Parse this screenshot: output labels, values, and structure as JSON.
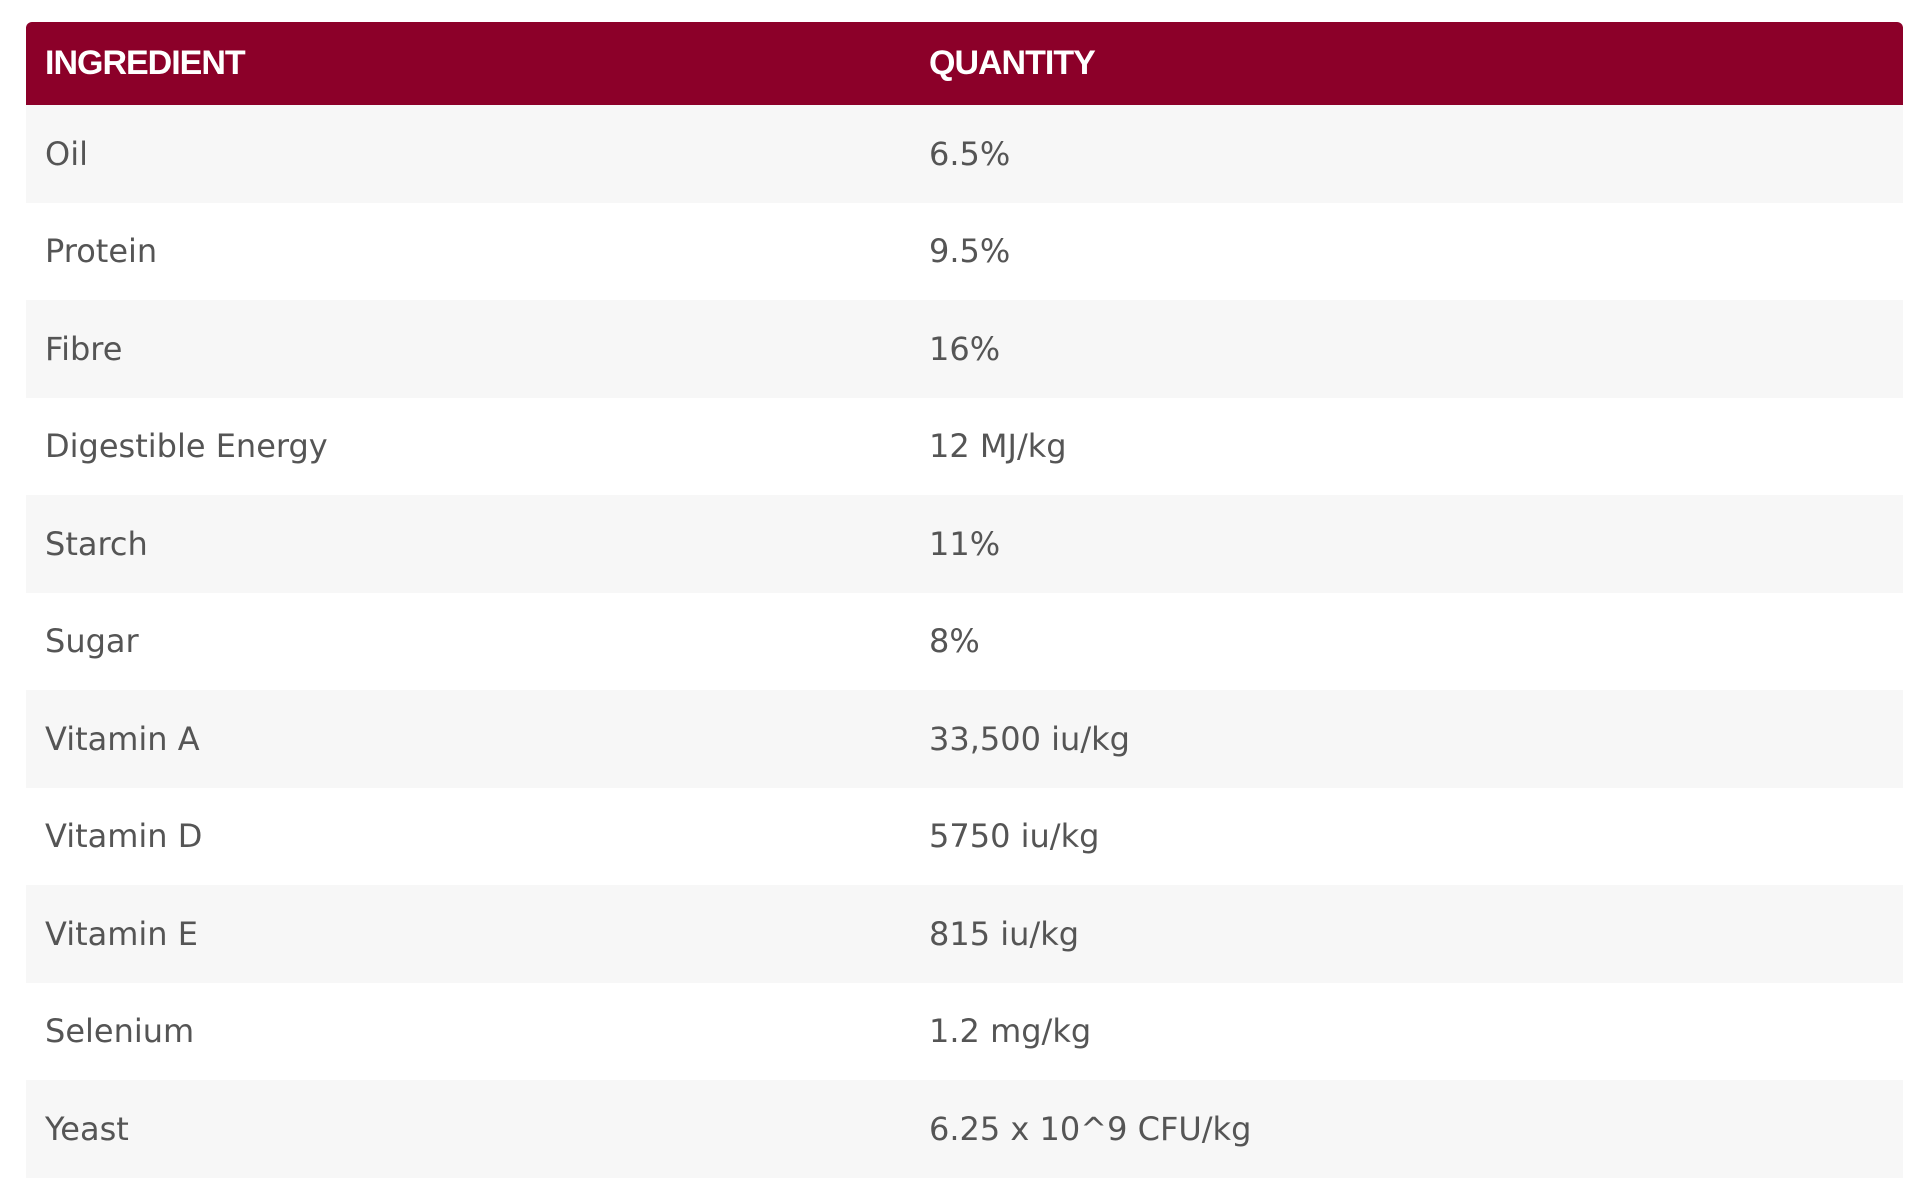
{
  "table": {
    "header": [
      "INGREDIENT",
      "QUANTITY"
    ],
    "rows": [
      [
        "Oil",
        "6.5%"
      ],
      [
        "Protein",
        "9.5%"
      ],
      [
        "Fibre",
        "16%"
      ],
      [
        "Digestible Energy",
        "12 MJ/kg"
      ],
      [
        "Starch",
        "11%"
      ],
      [
        "Sugar",
        "8%"
      ],
      [
        "Vitamin A",
        "33,500 iu/kg"
      ],
      [
        "Vitamin D",
        "5750 iu/kg"
      ],
      [
        "Vitamin E",
        "815 iu/kg"
      ],
      [
        "Selenium",
        "1.2 mg/kg"
      ],
      [
        "Yeast",
        "6.25 x 10^9 CFU/kg"
      ]
    ]
  }
}
